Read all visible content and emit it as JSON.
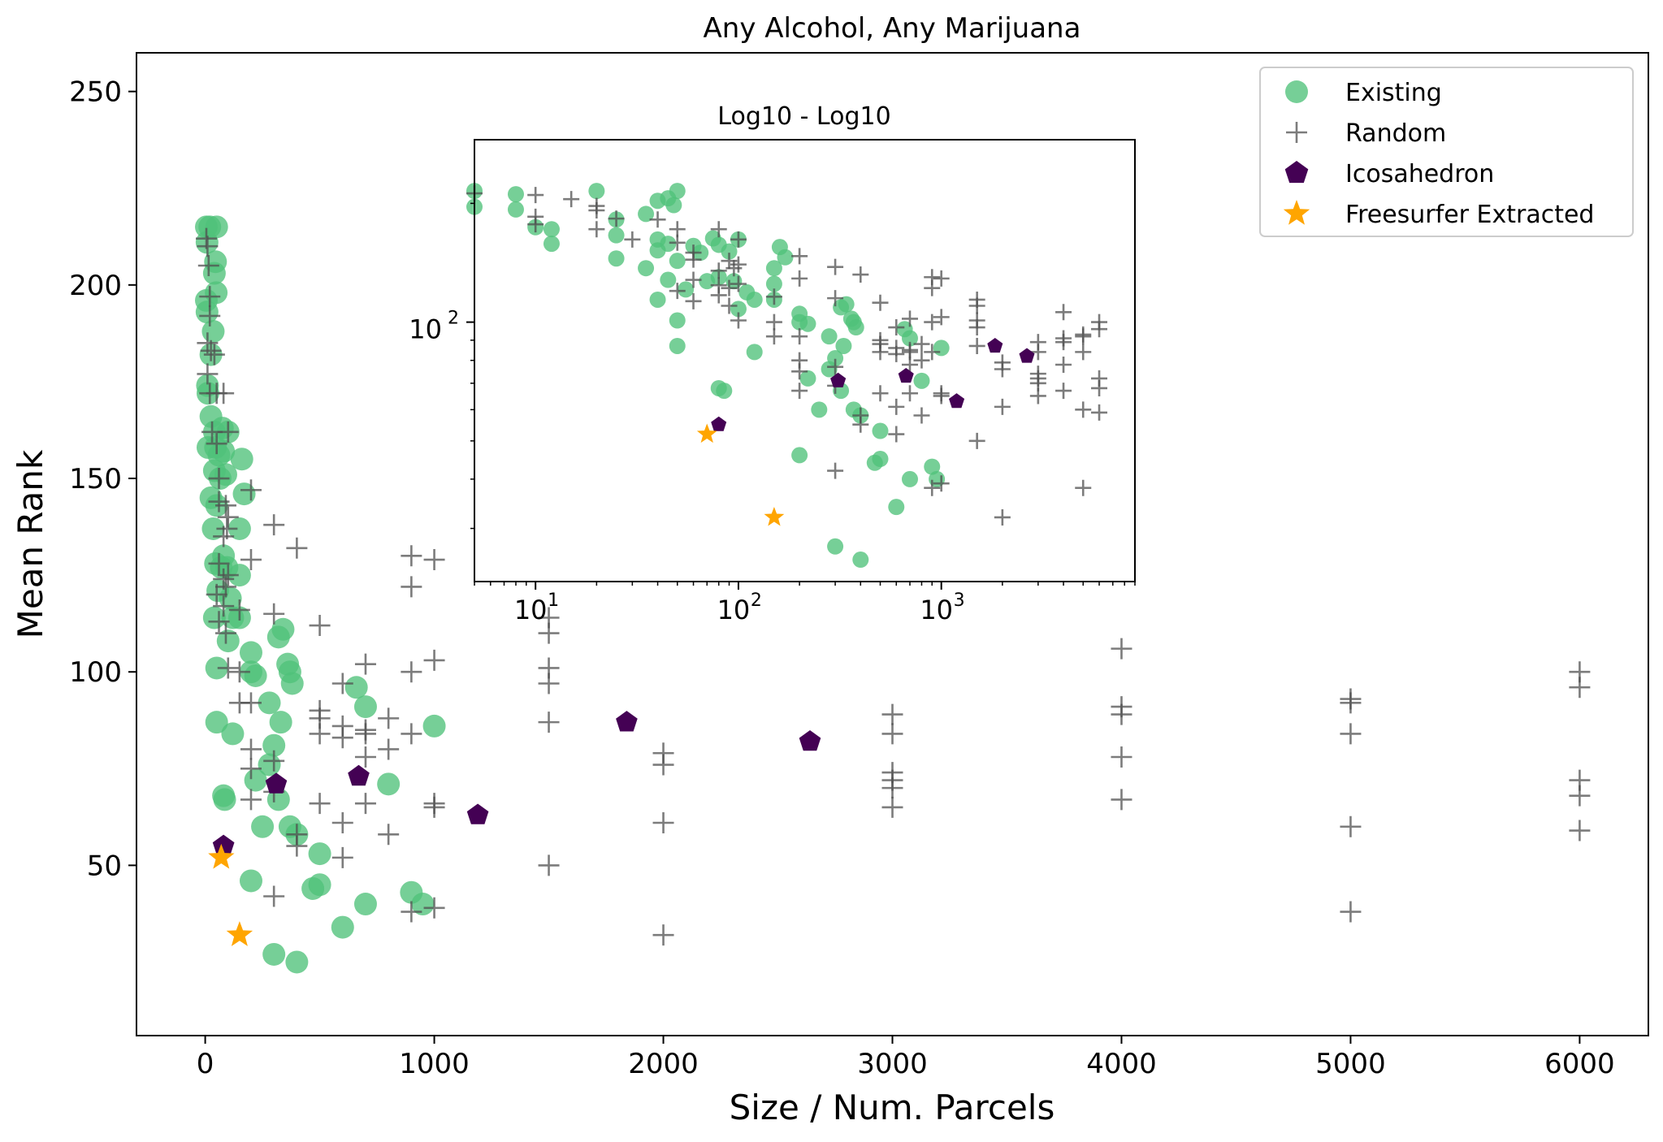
{
  "chart_data": [
    {
      "type": "scatter",
      "title": "Any Alcohol, Any Marijuana",
      "xlabel": "Size / Num. Parcels",
      "ylabel": "Mean Rank",
      "xlim": [
        -300,
        6300
      ],
      "ylim": [
        6,
        260
      ],
      "xticks": [
        0,
        1000,
        2000,
        3000,
        4000,
        5000,
        6000
      ],
      "yticks": [
        50,
        100,
        150,
        200,
        250
      ],
      "grid": false,
      "legend_position": "top-right",
      "colors": {
        "Existing": "#4fc17a",
        "Random": "#505050",
        "Icosahedron": "#440154",
        "Freesurfer Extracted": "#ffa500"
      },
      "series": [
        {
          "name": "Existing",
          "marker": "circle",
          "points": [
            [
              5,
              215
            ],
            [
              20,
              215
            ],
            [
              50,
              215
            ],
            [
              8,
              211
            ],
            [
              45,
              206
            ],
            [
              40,
              203
            ],
            [
              48,
              198
            ],
            [
              5,
              196
            ],
            [
              8,
              193
            ],
            [
              35,
              188
            ],
            [
              25,
              182
            ],
            [
              10,
              174
            ],
            [
              12,
              172
            ],
            [
              25,
              166
            ],
            [
              40,
              162
            ],
            [
              75,
              163
            ],
            [
              100,
              162
            ],
            [
              80,
              157
            ],
            [
              12,
              158
            ],
            [
              45,
              158
            ],
            [
              60,
              156
            ],
            [
              160,
              155
            ],
            [
              65,
              150
            ],
            [
              40,
              152
            ],
            [
              90,
              151
            ],
            [
              25,
              145
            ],
            [
              50,
              143
            ],
            [
              170,
              146
            ],
            [
              35,
              137
            ],
            [
              150,
              137
            ],
            [
              70,
              127
            ],
            [
              45,
              128
            ],
            [
              80,
              130
            ],
            [
              95,
              127
            ],
            [
              150,
              125
            ],
            [
              55,
              121
            ],
            [
              110,
              119
            ],
            [
              120,
              114
            ],
            [
              150,
              114
            ],
            [
              40,
              114
            ],
            [
              100,
              108
            ],
            [
              200,
              105
            ],
            [
              320,
              109
            ],
            [
              340,
              111
            ],
            [
              360,
              102
            ],
            [
              370,
              100
            ],
            [
              380,
              97
            ],
            [
              200,
              100
            ],
            [
              220,
              99
            ],
            [
              50,
              101
            ],
            [
              280,
              92
            ],
            [
              330,
              87
            ],
            [
              50,
              87
            ],
            [
              120,
              84
            ],
            [
              300,
              81
            ],
            [
              660,
              96
            ],
            [
              700,
              91
            ],
            [
              1000,
              86
            ],
            [
              280,
              76
            ],
            [
              220,
              72
            ],
            [
              320,
              67
            ],
            [
              800,
              71
            ],
            [
              80,
              68
            ],
            [
              85,
              67
            ],
            [
              250,
              60
            ],
            [
              370,
              60
            ],
            [
              400,
              58
            ],
            [
              200,
              46
            ],
            [
              500,
              53
            ],
            [
              470,
              44
            ],
            [
              500,
              45
            ],
            [
              700,
              40
            ],
            [
              900,
              43
            ],
            [
              950,
              40
            ],
            [
              600,
              34
            ],
            [
              300,
              27
            ],
            [
              400,
              25
            ]
          ]
        },
        {
          "name": "Random",
          "marker": "plus",
          "points": [
            [
              5,
              212
            ],
            [
              10,
              210
            ],
            [
              15,
              205
            ],
            [
              20,
              197
            ],
            [
              20,
              192
            ],
            [
              10,
              185
            ],
            [
              25,
              183
            ],
            [
              40,
              182
            ],
            [
              10,
              177
            ],
            [
              20,
              172
            ],
            [
              50,
              172
            ],
            [
              80,
              172
            ],
            [
              30,
              162
            ],
            [
              50,
              159
            ],
            [
              100,
              162
            ],
            [
              60,
              150
            ],
            [
              60,
              144
            ],
            [
              90,
              143
            ],
            [
              100,
              140
            ],
            [
              80,
              135
            ],
            [
              95,
              137
            ],
            [
              200,
              147
            ],
            [
              60,
              128
            ],
            [
              80,
              124
            ],
            [
              90,
              122
            ],
            [
              100,
              125
            ],
            [
              300,
              138
            ],
            [
              400,
              132
            ],
            [
              200,
              129
            ],
            [
              900,
              130
            ],
            [
              1000,
              129
            ],
            [
              900,
              122
            ],
            [
              50,
              120
            ],
            [
              80,
              117
            ],
            [
              150,
              116
            ],
            [
              300,
              115
            ],
            [
              500,
              112
            ],
            [
              60,
              113
            ],
            [
              90,
              110
            ],
            [
              1500,
              114
            ],
            [
              1500,
              110
            ],
            [
              100,
              101
            ],
            [
              150,
              100
            ],
            [
              150,
              92
            ],
            [
              200,
              92
            ],
            [
              700,
              102
            ],
            [
              1000,
              103
            ],
            [
              900,
              100
            ],
            [
              1500,
              101
            ],
            [
              1500,
              97
            ],
            [
              4000,
              106
            ],
            [
              6000,
              100
            ],
            [
              6000,
              96
            ],
            [
              5000,
              92
            ],
            [
              5000,
              93
            ],
            [
              600,
              97
            ],
            [
              500,
              90
            ],
            [
              500,
              88
            ],
            [
              600,
              86
            ],
            [
              700,
              85
            ],
            [
              500,
              84
            ],
            [
              600,
              83
            ],
            [
              700,
              84
            ],
            [
              800,
              88
            ],
            [
              900,
              84
            ],
            [
              1500,
              87
            ],
            [
              3000,
              89
            ],
            [
              3000,
              84
            ],
            [
              4000,
              91
            ],
            [
              4000,
              89
            ],
            [
              5000,
              84
            ],
            [
              200,
              80
            ],
            [
              200,
              75
            ],
            [
              300,
              77
            ],
            [
              700,
              78
            ],
            [
              800,
              80
            ],
            [
              2000,
              79
            ],
            [
              2000,
              76
            ],
            [
              4000,
              78
            ],
            [
              200,
              67
            ],
            [
              300,
              69
            ],
            [
              500,
              66
            ],
            [
              700,
              66
            ],
            [
              1000,
              66
            ],
            [
              1000,
              65
            ],
            [
              3000,
              74
            ],
            [
              3000,
              72
            ],
            [
              3000,
              70
            ],
            [
              3000,
              65
            ],
            [
              4000,
              67
            ],
            [
              6000,
              72
            ],
            [
              6000,
              68
            ],
            [
              600,
              61
            ],
            [
              800,
              58
            ],
            [
              2000,
              61
            ],
            [
              5000,
              60
            ],
            [
              6000,
              59
            ],
            [
              400,
              58
            ],
            [
              400,
              55
            ],
            [
              600,
              52
            ],
            [
              1500,
              50
            ],
            [
              300,
              42
            ],
            [
              900,
              38
            ],
            [
              1000,
              39
            ],
            [
              2000,
              32
            ],
            [
              5000,
              38
            ]
          ]
        },
        {
          "name": "Icosahedron",
          "marker": "pentagon",
          "points": [
            [
              80,
              55
            ],
            [
              310,
              71
            ],
            [
              670,
              73
            ],
            [
              1190,
              63
            ],
            [
              1840,
              87
            ],
            [
              2640,
              82
            ]
          ]
        },
        {
          "name": "Freesurfer Extracted",
          "marker": "star",
          "points": [
            [
              70,
              52
            ],
            [
              150,
              32
            ]
          ]
        }
      ]
    },
    {
      "type": "scatter",
      "title": "Log10 - Log10",
      "xscale": "log",
      "yscale": "log",
      "xlim": [
        5,
        9000
      ],
      "ylim": [
        22,
        290
      ],
      "xtick_labels": [
        "10",
        "10",
        "10"
      ],
      "xtick_exponents": [
        "1",
        "2",
        "3"
      ],
      "xtick_values": [
        10,
        100,
        1000
      ],
      "ytick_labels": [
        "10"
      ],
      "ytick_exponents": [
        "2"
      ],
      "ytick_values": [
        100
      ],
      "grid": false,
      "series": [
        {
          "name": "Existing",
          "ref": "chart_data.0.series.0"
        },
        {
          "name": "Random",
          "ref": "chart_data.0.series.1"
        },
        {
          "name": "Icosahedron",
          "ref": "chart_data.0.series.2"
        },
        {
          "name": "Freesurfer Extracted",
          "ref": "chart_data.0.series.3"
        }
      ]
    }
  ]
}
